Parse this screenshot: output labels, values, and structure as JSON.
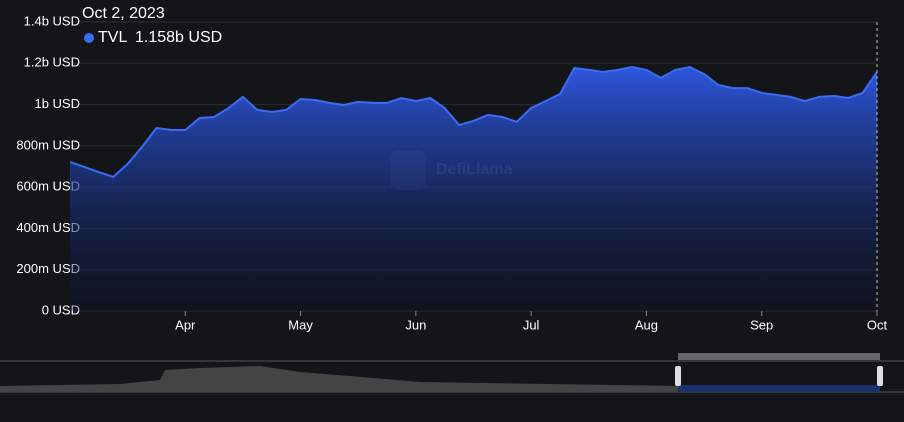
{
  "chart_data": {
    "type": "area",
    "hover": {
      "date": "Oct 2, 2023",
      "value": 1158000000,
      "value_label": "1.158b USD"
    },
    "watermark": "DefiLlama",
    "categories": [
      null,
      null,
      null,
      null,
      null,
      null,
      null,
      null,
      "Apr",
      null,
      null,
      null,
      null,
      null,
      null,
      null,
      "May",
      null,
      null,
      null,
      null,
      null,
      null,
      null,
      "Jun",
      null,
      null,
      null,
      null,
      null,
      null,
      null,
      "Jul",
      null,
      null,
      null,
      null,
      null,
      null,
      null,
      "Aug",
      null,
      null,
      null,
      null,
      null,
      null,
      null,
      "Sep",
      null,
      null,
      null,
      null,
      null,
      null,
      null,
      "Oct"
    ],
    "series": [
      {
        "name": "TVL",
        "color": "#3b6cf6",
        "values": [
          722000000,
          698000000,
          673000000,
          649000000,
          712000000,
          795000000,
          887000000,
          877000000,
          877000000,
          935000000,
          940000000,
          983000000,
          1037000000,
          974000000,
          964000000,
          974000000,
          1027000000,
          1022000000,
          1008000000,
          998000000,
          1013000000,
          1008000000,
          1008000000,
          1032000000,
          1017000000,
          1032000000,
          983000000,
          901000000,
          921000000,
          950000000,
          940000000,
          916000000,
          983000000,
          1017000000,
          1051000000,
          1177000000,
          1168000000,
          1158000000,
          1168000000,
          1182000000,
          1168000000,
          1129000000,
          1168000000,
          1182000000,
          1148000000,
          1095000000,
          1080000000,
          1080000000,
          1056000000,
          1047000000,
          1037000000,
          1017000000,
          1037000000,
          1042000000,
          1032000000,
          1056000000,
          1158000000
        ]
      }
    ],
    "ylim": [
      0,
      1400000000
    ],
    "yticks": [
      {
        "value": 0,
        "label": "0 USD"
      },
      {
        "value": 200000000,
        "label": "200m USD"
      },
      {
        "value": 400000000,
        "label": "400m USD"
      },
      {
        "value": 600000000,
        "label": "600m USD"
      },
      {
        "value": 800000000,
        "label": "800m USD"
      },
      {
        "value": 1000000000,
        "label": "1b USD"
      },
      {
        "value": 1200000000,
        "label": "1.2b USD"
      },
      {
        "value": 1400000000,
        "label": "1.4b USD"
      }
    ],
    "grid": true
  }
}
